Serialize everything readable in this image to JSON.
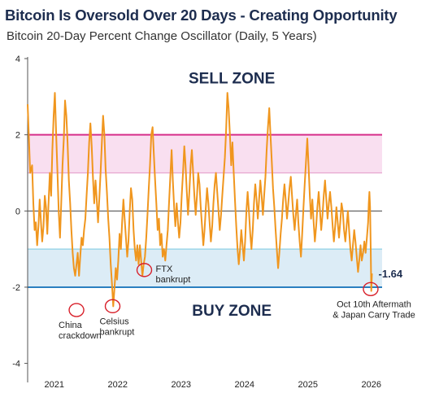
{
  "title": "Bitcoin Is Oversold Over 20 Days - Creating Opportunity",
  "subtitle": "Bitcoin 20-Day Percent Change Oscillator (Daily, 5 Years)",
  "colors": {
    "line": "#f0961e",
    "sell_band": "#f9dff0",
    "sell_line": "#d62f8a",
    "sell_line_light": "#e6a6cf",
    "buy_band": "#dcecf6",
    "buy_line": "#2a7fc0",
    "buy_line_light": "#8ed0e6",
    "annotation": "#d8202a",
    "zone_text": "#1d2d4f"
  },
  "chart_data": {
    "type": "line",
    "title": "Bitcoin Is Oversold Over 20 Days - Creating Opportunity",
    "subtitle": "Bitcoin 20-Day Percent Change Oscillator (Daily, 5 Years)",
    "xlabel": "",
    "ylabel": "",
    "ylim": [
      -4.5,
      4
    ],
    "yticks": [
      4,
      2,
      0,
      -2,
      -4
    ],
    "xlim": [
      2020.58,
      2026.17
    ],
    "xticks": [
      {
        "x": 2021,
        "label": "2021"
      },
      {
        "x": 2022,
        "label": "2022"
      },
      {
        "x": 2023,
        "label": "2023"
      },
      {
        "x": 2024,
        "label": "2024"
      },
      {
        "x": 2025,
        "label": "2025"
      },
      {
        "x": 2026,
        "label": "2026"
      }
    ],
    "grid": false,
    "legend": "none",
    "reference_lines": [
      {
        "y": 2,
        "color": "#d62f8a"
      },
      {
        "y": 1,
        "color": "#e6a6cf"
      },
      {
        "y": 0,
        "color": "#555555"
      },
      {
        "y": -1,
        "color": "#8ed0e6"
      },
      {
        "y": -2,
        "color": "#2a7fc0"
      }
    ],
    "bands": [
      {
        "from": 1,
        "to": 2,
        "color": "#f9dff0"
      },
      {
        "from": -2,
        "to": -1,
        "color": "#dcecf6"
      }
    ],
    "zone_labels": [
      {
        "text": "SELL ZONE",
        "x": 2023.8,
        "y": 3.5
      },
      {
        "text": "BUY ZONE",
        "x": 2023.8,
        "y": -2.6
      }
    ],
    "annotations": [
      {
        "lines": [
          "China",
          "crackdown"
        ],
        "x": 2021.35,
        "y": -2.6
      },
      {
        "lines": [
          "Celsius",
          "bankrupt"
        ],
        "x": 2021.92,
        "y": -2.5
      },
      {
        "lines": [
          "FTX",
          "bankrupt"
        ],
        "x": 2022.42,
        "y": -1.55
      },
      {
        "lines": [
          "Oct 10th Aftermath",
          "& Japan Carry Trade"
        ],
        "x": 2025.99,
        "y": -2.05
      }
    ],
    "last_value_label": "-1.64",
    "series": [
      {
        "color": "#f0961e",
        "points": [
          [
            2020.58,
            2.8
          ],
          [
            2020.6,
            1.9
          ],
          [
            2020.62,
            1.0
          ],
          [
            2020.65,
            1.2
          ],
          [
            2020.67,
            0.2
          ],
          [
            2020.69,
            -0.5
          ],
          [
            2020.71,
            -0.3
          ],
          [
            2020.73,
            -0.9
          ],
          [
            2020.75,
            -0.4
          ],
          [
            2020.77,
            0.3
          ],
          [
            2020.79,
            -0.3
          ],
          [
            2020.81,
            -0.8
          ],
          [
            2020.83,
            -0.4
          ],
          [
            2020.85,
            0.4
          ],
          [
            2020.87,
            0.1
          ],
          [
            2020.89,
            -0.6
          ],
          [
            2020.91,
            0.2
          ],
          [
            2020.93,
            1.0
          ],
          [
            2020.95,
            0.4
          ],
          [
            2020.97,
            1.6
          ],
          [
            2020.99,
            2.5
          ],
          [
            2021.01,
            3.1
          ],
          [
            2021.03,
            2.0
          ],
          [
            2021.05,
            1.0
          ],
          [
            2021.07,
            0.0
          ],
          [
            2021.09,
            -0.7
          ],
          [
            2021.11,
            0.2
          ],
          [
            2021.13,
            1.2
          ],
          [
            2021.15,
            1.9
          ],
          [
            2021.17,
            2.9
          ],
          [
            2021.19,
            2.5
          ],
          [
            2021.21,
            1.8
          ],
          [
            2021.23,
            0.8
          ],
          [
            2021.25,
            0.2
          ],
          [
            2021.27,
            -0.5
          ],
          [
            2021.29,
            -1.1
          ],
          [
            2021.31,
            -1.5
          ],
          [
            2021.33,
            -1.7
          ],
          [
            2021.35,
            -1.4
          ],
          [
            2021.37,
            -1.1
          ],
          [
            2021.39,
            -1.7
          ],
          [
            2021.41,
            -1.2
          ],
          [
            2021.43,
            -0.7
          ],
          [
            2021.45,
            -0.9
          ],
          [
            2021.47,
            -0.5
          ],
          [
            2021.49,
            -0.2
          ],
          [
            2021.51,
            0.4
          ],
          [
            2021.53,
            1.0
          ],
          [
            2021.55,
            1.8
          ],
          [
            2021.57,
            2.3
          ],
          [
            2021.59,
            1.7
          ],
          [
            2021.61,
            0.9
          ],
          [
            2021.63,
            0.2
          ],
          [
            2021.65,
            0.8
          ],
          [
            2021.67,
            0.3
          ],
          [
            2021.69,
            -0.3
          ],
          [
            2021.71,
            0.3
          ],
          [
            2021.73,
            1.0
          ],
          [
            2021.75,
            1.8
          ],
          [
            2021.77,
            2.5
          ],
          [
            2021.79,
            2.0
          ],
          [
            2021.81,
            1.1
          ],
          [
            2021.83,
            0.5
          ],
          [
            2021.85,
            -0.2
          ],
          [
            2021.87,
            -0.7
          ],
          [
            2021.89,
            -1.4
          ],
          [
            2021.91,
            -1.9
          ],
          [
            2021.93,
            -2.5
          ],
          [
            2021.95,
            -2.0
          ],
          [
            2021.97,
            -1.5
          ],
          [
            2021.99,
            -1.8
          ],
          [
            2022.01,
            -1.3
          ],
          [
            2022.03,
            -0.6
          ],
          [
            2022.05,
            -1.0
          ],
          [
            2022.07,
            -0.3
          ],
          [
            2022.09,
            0.3
          ],
          [
            2022.11,
            -0.2
          ],
          [
            2022.13,
            -0.7
          ],
          [
            2022.15,
            -1.2
          ],
          [
            2022.17,
            -0.8
          ],
          [
            2022.19,
            0.0
          ],
          [
            2022.21,
            0.6
          ],
          [
            2022.23,
            0.3
          ],
          [
            2022.25,
            -0.5
          ],
          [
            2022.27,
            -1.0
          ],
          [
            2022.29,
            -1.3
          ],
          [
            2022.31,
            -0.9
          ],
          [
            2022.33,
            -1.4
          ],
          [
            2022.35,
            -0.9
          ],
          [
            2022.37,
            -1.3
          ],
          [
            2022.39,
            -1.7
          ],
          [
            2022.41,
            -1.4
          ],
          [
            2022.43,
            -1.2
          ],
          [
            2022.45,
            -0.7
          ],
          [
            2022.47,
            -0.1
          ],
          [
            2022.49,
            0.6
          ],
          [
            2022.51,
            1.2
          ],
          [
            2022.53,
            2.0
          ],
          [
            2022.55,
            2.2
          ],
          [
            2022.57,
            1.5
          ],
          [
            2022.59,
            0.8
          ],
          [
            2022.61,
            0.2
          ],
          [
            2022.63,
            -0.5
          ],
          [
            2022.65,
            -0.2
          ],
          [
            2022.67,
            -0.9
          ],
          [
            2022.69,
            -0.6
          ],
          [
            2022.71,
            -1.2
          ],
          [
            2022.73,
            -1.0
          ],
          [
            2022.75,
            -1.3
          ],
          [
            2022.77,
            -0.9
          ],
          [
            2022.79,
            -0.5
          ],
          [
            2022.81,
            0.2
          ],
          [
            2022.83,
            0.9
          ],
          [
            2022.85,
            1.6
          ],
          [
            2022.87,
            0.8
          ],
          [
            2022.89,
            0.1
          ],
          [
            2022.91,
            -0.4
          ],
          [
            2022.93,
            0.2
          ],
          [
            2022.95,
            -0.3
          ],
          [
            2022.97,
            -0.7
          ],
          [
            2022.99,
            -0.3
          ],
          [
            2023.01,
            0.4
          ],
          [
            2023.03,
            1.0
          ],
          [
            2023.05,
            1.7
          ],
          [
            2023.07,
            1.2
          ],
          [
            2023.09,
            0.5
          ],
          [
            2023.11,
            -0.1
          ],
          [
            2023.13,
            0.5
          ],
          [
            2023.15,
            1.2
          ],
          [
            2023.17,
            1.6
          ],
          [
            2023.19,
            1.0
          ],
          [
            2023.21,
            0.4
          ],
          [
            2023.23,
            -0.1
          ],
          [
            2023.25,
            0.4
          ],
          [
            2023.27,
            1.0
          ],
          [
            2023.29,
            0.7
          ],
          [
            2023.31,
            0.1
          ],
          [
            2023.33,
            -0.4
          ],
          [
            2023.35,
            -0.9
          ],
          [
            2023.37,
            -0.5
          ],
          [
            2023.39,
            0.1
          ],
          [
            2023.41,
            0.6
          ],
          [
            2023.43,
            0.2
          ],
          [
            2023.45,
            -0.3
          ],
          [
            2023.47,
            -0.8
          ],
          [
            2023.49,
            -0.4
          ],
          [
            2023.51,
            0.2
          ],
          [
            2023.53,
            0.7
          ],
          [
            2023.55,
            1.0
          ],
          [
            2023.57,
            0.5
          ],
          [
            2023.59,
            0.0
          ],
          [
            2023.61,
            -0.5
          ],
          [
            2023.63,
            -0.1
          ],
          [
            2023.65,
            0.4
          ],
          [
            2023.67,
            0.9
          ],
          [
            2023.69,
            1.4
          ],
          [
            2023.71,
            2.1
          ],
          [
            2023.73,
            3.1
          ],
          [
            2023.75,
            2.7
          ],
          [
            2023.77,
            2.0
          ],
          [
            2023.79,
            1.2
          ],
          [
            2023.81,
            1.8
          ],
          [
            2023.83,
            1.0
          ],
          [
            2023.85,
            0.3
          ],
          [
            2023.87,
            -0.4
          ],
          [
            2023.89,
            -1.0
          ],
          [
            2023.91,
            -1.4
          ],
          [
            2023.93,
            -1.0
          ],
          [
            2023.95,
            -0.5
          ],
          [
            2023.97,
            -0.9
          ],
          [
            2023.99,
            -1.3
          ],
          [
            2024.01,
            -0.8
          ],
          [
            2024.03,
            0.0
          ],
          [
            2024.05,
            0.5
          ],
          [
            2024.07,
            0.0
          ],
          [
            2024.09,
            -0.6
          ],
          [
            2024.11,
            -1.0
          ],
          [
            2024.13,
            -0.5
          ],
          [
            2024.15,
            0.2
          ],
          [
            2024.17,
            0.7
          ],
          [
            2024.19,
            0.3
          ],
          [
            2024.21,
            -0.2
          ],
          [
            2024.23,
            0.3
          ],
          [
            2024.25,
            0.8
          ],
          [
            2024.27,
            0.4
          ],
          [
            2024.29,
            -0.1
          ],
          [
            2024.31,
            0.4
          ],
          [
            2024.33,
            0.9
          ],
          [
            2024.35,
            1.6
          ],
          [
            2024.37,
            2.2
          ],
          [
            2024.39,
            2.7
          ],
          [
            2024.41,
            2.0
          ],
          [
            2024.43,
            1.3
          ],
          [
            2024.45,
            0.6
          ],
          [
            2024.47,
            0.1
          ],
          [
            2024.49,
            -0.5
          ],
          [
            2024.51,
            -1.0
          ],
          [
            2024.53,
            -1.5
          ],
          [
            2024.55,
            -1.1
          ],
          [
            2024.57,
            -0.6
          ],
          [
            2024.59,
            -0.2
          ],
          [
            2024.61,
            0.3
          ],
          [
            2024.63,
            0.7
          ],
          [
            2024.65,
            0.3
          ],
          [
            2024.67,
            -0.2
          ],
          [
            2024.69,
            0.2
          ],
          [
            2024.71,
            0.6
          ],
          [
            2024.73,
            0.9
          ],
          [
            2024.75,
            0.4
          ],
          [
            2024.77,
            -0.1
          ],
          [
            2024.79,
            -0.5
          ],
          [
            2024.81,
            -0.1
          ],
          [
            2024.83,
            0.3
          ],
          [
            2024.85,
            -0.3
          ],
          [
            2024.87,
            -0.8
          ],
          [
            2024.89,
            -1.2
          ],
          [
            2024.91,
            -0.6
          ],
          [
            2024.93,
            0.1
          ],
          [
            2024.95,
            0.7
          ],
          [
            2024.97,
            1.3
          ],
          [
            2024.99,
            1.9
          ],
          [
            2025.01,
            1.2
          ],
          [
            2025.03,
            0.4
          ],
          [
            2025.05,
            -0.2
          ],
          [
            2025.07,
            0.3
          ],
          [
            2025.09,
            -0.3
          ],
          [
            2025.11,
            -0.8
          ],
          [
            2025.13,
            -0.4
          ],
          [
            2025.15,
            0.1
          ],
          [
            2025.17,
            0.5
          ],
          [
            2025.19,
            0.0
          ],
          [
            2025.21,
            -0.5
          ],
          [
            2025.23,
            -0.1
          ],
          [
            2025.25,
            0.4
          ],
          [
            2025.27,
            0.8
          ],
          [
            2025.29,
            0.3
          ],
          [
            2025.31,
            -0.2
          ],
          [
            2025.33,
            0.2
          ],
          [
            2025.35,
            0.5
          ],
          [
            2025.37,
            0.1
          ],
          [
            2025.39,
            -0.4
          ],
          [
            2025.41,
            -0.8
          ],
          [
            2025.43,
            -0.4
          ],
          [
            2025.45,
            0.1
          ],
          [
            2025.47,
            -0.3
          ],
          [
            2025.49,
            -0.7
          ],
          [
            2025.51,
            -0.3
          ],
          [
            2025.53,
            0.2
          ],
          [
            2025.55,
            0.0
          ],
          [
            2025.57,
            -0.5
          ],
          [
            2025.59,
            -0.8
          ],
          [
            2025.61,
            -0.4
          ],
          [
            2025.63,
            0.0
          ],
          [
            2025.65,
            -0.5
          ],
          [
            2025.67,
            -1.0
          ],
          [
            2025.69,
            -1.3
          ],
          [
            2025.71,
            -0.9
          ],
          [
            2025.73,
            -0.5
          ],
          [
            2025.75,
            -0.8
          ],
          [
            2025.77,
            -1.2
          ],
          [
            2025.79,
            -1.6
          ],
          [
            2025.81,
            -1.3
          ],
          [
            2025.83,
            -0.9
          ],
          [
            2025.85,
            -1.3
          ],
          [
            2025.87,
            -1.1
          ],
          [
            2025.89,
            -0.8
          ],
          [
            2025.91,
            -1.1
          ],
          [
            2025.93,
            -0.7
          ],
          [
            2025.95,
            -0.3
          ],
          [
            2025.96,
            0.2
          ],
          [
            2025.97,
            0.5
          ],
          [
            2025.98,
            0.1
          ],
          [
            2025.99,
            -1.0
          ],
          [
            2026.0,
            -2.1
          ],
          [
            2026.01,
            -1.64
          ]
        ]
      }
    ]
  }
}
